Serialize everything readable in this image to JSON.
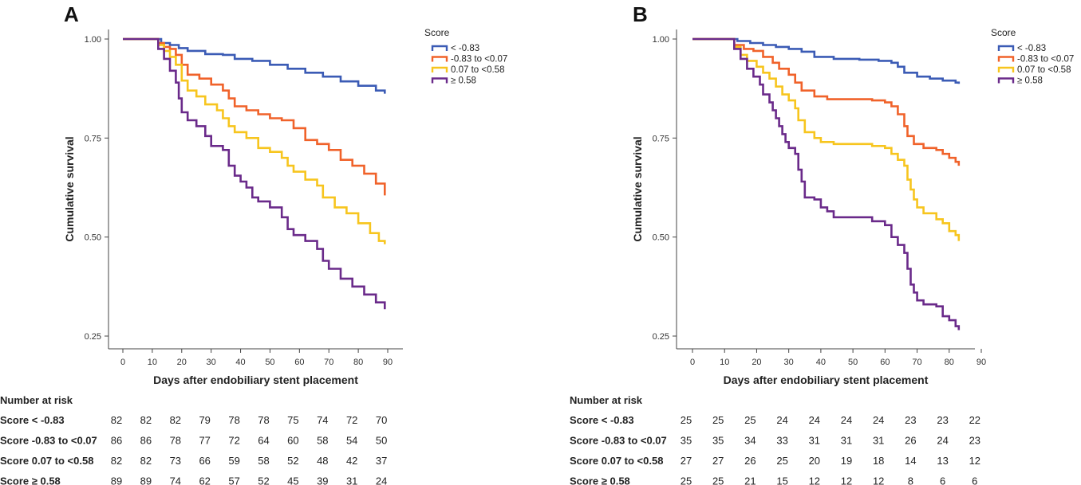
{
  "legend_title": "Score",
  "number_at_risk_label": "Number at risk",
  "series_colors": [
    "#3b5bb5",
    "#f0622a",
    "#f7c51e",
    "#6a2a8a"
  ],
  "chart_data": [
    {
      "panel": "A",
      "type": "line",
      "title": "",
      "xlabel": "Days after endobiliary stent placement",
      "ylabel": "Cumulative survival",
      "xlim": [
        -5,
        92
      ],
      "ylim": [
        0.22,
        1.02
      ],
      "xticks": [
        "0",
        "10",
        "20",
        "30",
        "40",
        "50",
        "60",
        "70",
        "80",
        "90"
      ],
      "yticks": [
        "0.25",
        "0.50",
        "0.75",
        "1.00"
      ],
      "legend_position": "top-right",
      "series": [
        {
          "name": " < -0.83",
          "points": [
            [
              0,
              1
            ],
            [
              10,
              1
            ],
            [
              13,
              0.99
            ],
            [
              16,
              0.985
            ],
            [
              19,
              0.977
            ],
            [
              22,
              0.97
            ],
            [
              28,
              0.962
            ],
            [
              34,
              0.96
            ],
            [
              38,
              0.95
            ],
            [
              44,
              0.945
            ],
            [
              50,
              0.935
            ],
            [
              56,
              0.925
            ],
            [
              62,
              0.915
            ],
            [
              68,
              0.905
            ],
            [
              74,
              0.893
            ],
            [
              80,
              0.882
            ],
            [
              86,
              0.87
            ],
            [
              89,
              0.862
            ]
          ]
        },
        {
          "name": "-0.83 to <0.07",
          "points": [
            [
              0,
              1
            ],
            [
              10,
              1
            ],
            [
              12,
              0.99
            ],
            [
              14,
              0.98
            ],
            [
              16,
              0.975
            ],
            [
              18,
              0.96
            ],
            [
              20,
              0.935
            ],
            [
              22,
              0.91
            ],
            [
              26,
              0.9
            ],
            [
              30,
              0.885
            ],
            [
              34,
              0.87
            ],
            [
              36,
              0.85
            ],
            [
              38,
              0.83
            ],
            [
              42,
              0.82
            ],
            [
              46,
              0.81
            ],
            [
              50,
              0.8
            ],
            [
              54,
              0.795
            ],
            [
              58,
              0.775
            ],
            [
              62,
              0.745
            ],
            [
              66,
              0.735
            ],
            [
              70,
              0.72
            ],
            [
              74,
              0.695
            ],
            [
              78,
              0.68
            ],
            [
              82,
              0.66
            ],
            [
              86,
              0.635
            ],
            [
              89,
              0.605
            ]
          ]
        },
        {
          "name": "0.07 to <0.58",
          "points": [
            [
              0,
              1
            ],
            [
              10,
              1
            ],
            [
              12,
              0.985
            ],
            [
              14,
              0.97
            ],
            [
              16,
              0.955
            ],
            [
              18,
              0.935
            ],
            [
              20,
              0.895
            ],
            [
              22,
              0.87
            ],
            [
              25,
              0.855
            ],
            [
              28,
              0.835
            ],
            [
              32,
              0.82
            ],
            [
              34,
              0.8
            ],
            [
              36,
              0.78
            ],
            [
              38,
              0.765
            ],
            [
              42,
              0.75
            ],
            [
              46,
              0.725
            ],
            [
              50,
              0.715
            ],
            [
              54,
              0.7
            ],
            [
              56,
              0.68
            ],
            [
              58,
              0.665
            ],
            [
              62,
              0.645
            ],
            [
              66,
              0.63
            ],
            [
              68,
              0.6
            ],
            [
              72,
              0.575
            ],
            [
              76,
              0.56
            ],
            [
              80,
              0.535
            ],
            [
              84,
              0.51
            ],
            [
              87,
              0.49
            ],
            [
              89,
              0.482
            ]
          ]
        },
        {
          "name": "≥ 0.58",
          "points": [
            [
              0,
              1
            ],
            [
              10,
              1
            ],
            [
              12,
              0.975
            ],
            [
              14,
              0.95
            ],
            [
              16,
              0.92
            ],
            [
              18,
              0.89
            ],
            [
              19,
              0.85
            ],
            [
              20,
              0.815
            ],
            [
              22,
              0.795
            ],
            [
              25,
              0.78
            ],
            [
              28,
              0.755
            ],
            [
              30,
              0.73
            ],
            [
              34,
              0.72
            ],
            [
              36,
              0.68
            ],
            [
              38,
              0.655
            ],
            [
              40,
              0.64
            ],
            [
              42,
              0.625
            ],
            [
              44,
              0.6
            ],
            [
              46,
              0.59
            ],
            [
              50,
              0.575
            ],
            [
              54,
              0.55
            ],
            [
              56,
              0.52
            ],
            [
              58,
              0.505
            ],
            [
              62,
              0.49
            ],
            [
              66,
              0.47
            ],
            [
              68,
              0.44
            ],
            [
              70,
              0.42
            ],
            [
              74,
              0.395
            ],
            [
              78,
              0.375
            ],
            [
              82,
              0.355
            ],
            [
              86,
              0.335
            ],
            [
              89,
              0.318
            ]
          ]
        }
      ],
      "risk_table": [
        {
          "label": "Score < -0.83",
          "values": [
            "82",
            "82",
            "82",
            "79",
            "78",
            "78",
            "75",
            "74",
            "72",
            "70"
          ]
        },
        {
          "label": "Score -0.83 to <0.07",
          "values": [
            "86",
            "86",
            "78",
            "77",
            "72",
            "64",
            "60",
            "58",
            "54",
            "50"
          ]
        },
        {
          "label": "Score 0.07 to <0.58",
          "values": [
            "82",
            "82",
            "73",
            "66",
            "59",
            "58",
            "52",
            "48",
            "42",
            "37"
          ]
        },
        {
          "label": "Score ≥ 0.58",
          "values": [
            "89",
            "89",
            "74",
            "62",
            "57",
            "52",
            "45",
            "39",
            "31",
            "24"
          ]
        }
      ]
    },
    {
      "panel": "B",
      "type": "line",
      "title": "",
      "xlabel": "Days after endobiliary stent placement",
      "ylabel": "Cumulative survival",
      "xlim": [
        -5,
        92
      ],
      "ylim": [
        0.22,
        1.02
      ],
      "xticks": [
        "0",
        "10",
        "20",
        "30",
        "40",
        "50",
        "60",
        "70",
        "80",
        "90"
      ],
      "yticks": [
        "0.25",
        "0.50",
        "0.75",
        "1.00"
      ],
      "legend_position": "top-right",
      "series": [
        {
          "name": " < -0.83",
          "points": [
            [
              0,
              1
            ],
            [
              12,
              1
            ],
            [
              14,
              0.995
            ],
            [
              18,
              0.99
            ],
            [
              22,
              0.985
            ],
            [
              26,
              0.98
            ],
            [
              30,
              0.975
            ],
            [
              34,
              0.968
            ],
            [
              38,
              0.955
            ],
            [
              44,
              0.95
            ],
            [
              52,
              0.948
            ],
            [
              58,
              0.945
            ],
            [
              62,
              0.94
            ],
            [
              64,
              0.93
            ],
            [
              66,
              0.915
            ],
            [
              70,
              0.905
            ],
            [
              74,
              0.9
            ],
            [
              78,
              0.895
            ],
            [
              82,
              0.89
            ],
            [
              83,
              0.887
            ]
          ]
        },
        {
          "name": "-0.83 to <0.07",
          "points": [
            [
              0,
              1
            ],
            [
              12,
              1
            ],
            [
              13,
              0.985
            ],
            [
              16,
              0.975
            ],
            [
              19,
              0.97
            ],
            [
              22,
              0.955
            ],
            [
              25,
              0.94
            ],
            [
              27,
              0.925
            ],
            [
              30,
              0.91
            ],
            [
              32,
              0.89
            ],
            [
              34,
              0.87
            ],
            [
              38,
              0.855
            ],
            [
              42,
              0.848
            ],
            [
              48,
              0.848
            ],
            [
              56,
              0.845
            ],
            [
              60,
              0.84
            ],
            [
              62,
              0.83
            ],
            [
              64,
              0.81
            ],
            [
              66,
              0.78
            ],
            [
              67,
              0.755
            ],
            [
              69,
              0.735
            ],
            [
              72,
              0.725
            ],
            [
              76,
              0.72
            ],
            [
              78,
              0.71
            ],
            [
              80,
              0.7
            ],
            [
              82,
              0.69
            ],
            [
              83,
              0.68
            ]
          ]
        },
        {
          "name": "0.07 to <0.58",
          "points": [
            [
              0,
              1
            ],
            [
              12,
              1
            ],
            [
              13,
              0.98
            ],
            [
              15,
              0.96
            ],
            [
              17,
              0.945
            ],
            [
              20,
              0.93
            ],
            [
              22,
              0.915
            ],
            [
              24,
              0.9
            ],
            [
              26,
              0.88
            ],
            [
              28,
              0.86
            ],
            [
              30,
              0.845
            ],
            [
              32,
              0.825
            ],
            [
              33,
              0.795
            ],
            [
              35,
              0.765
            ],
            [
              38,
              0.75
            ],
            [
              40,
              0.74
            ],
            [
              44,
              0.735
            ],
            [
              52,
              0.735
            ],
            [
              56,
              0.73
            ],
            [
              60,
              0.725
            ],
            [
              62,
              0.71
            ],
            [
              64,
              0.695
            ],
            [
              66,
              0.68
            ],
            [
              67,
              0.645
            ],
            [
              68,
              0.62
            ],
            [
              69,
              0.595
            ],
            [
              70,
              0.575
            ],
            [
              72,
              0.56
            ],
            [
              76,
              0.545
            ],
            [
              78,
              0.535
            ],
            [
              80,
              0.515
            ],
            [
              82,
              0.505
            ],
            [
              83,
              0.49
            ]
          ]
        },
        {
          "name": "≥ 0.58",
          "points": [
            [
              0,
              1
            ],
            [
              12,
              1
            ],
            [
              13,
              0.975
            ],
            [
              15,
              0.95
            ],
            [
              17,
              0.925
            ],
            [
              19,
              0.905
            ],
            [
              21,
              0.885
            ],
            [
              22,
              0.86
            ],
            [
              24,
              0.84
            ],
            [
              25,
              0.82
            ],
            [
              26,
              0.8
            ],
            [
              27,
              0.78
            ],
            [
              28,
              0.76
            ],
            [
              29,
              0.74
            ],
            [
              30,
              0.725
            ],
            [
              32,
              0.71
            ],
            [
              33,
              0.67
            ],
            [
              34,
              0.64
            ],
            [
              35,
              0.6
            ],
            [
              38,
              0.595
            ],
            [
              40,
              0.575
            ],
            [
              42,
              0.565
            ],
            [
              44,
              0.55
            ],
            [
              54,
              0.55
            ],
            [
              56,
              0.54
            ],
            [
              60,
              0.53
            ],
            [
              62,
              0.5
            ],
            [
              64,
              0.48
            ],
            [
              66,
              0.46
            ],
            [
              67,
              0.42
            ],
            [
              68,
              0.38
            ],
            [
              69,
              0.36
            ],
            [
              70,
              0.34
            ],
            [
              72,
              0.33
            ],
            [
              76,
              0.325
            ],
            [
              78,
              0.3
            ],
            [
              80,
              0.29
            ],
            [
              82,
              0.275
            ],
            [
              83,
              0.265
            ]
          ]
        }
      ],
      "risk_table": [
        {
          "label": "Score < -0.83",
          "values": [
            "25",
            "25",
            "25",
            "24",
            "24",
            "24",
            "24",
            "23",
            "23",
            "22"
          ]
        },
        {
          "label": "Score -0.83 to <0.07",
          "values": [
            "35",
            "35",
            "34",
            "33",
            "31",
            "31",
            "31",
            "26",
            "24",
            "23"
          ]
        },
        {
          "label": "Score 0.07 to <0.58",
          "values": [
            "27",
            "27",
            "26",
            "25",
            "20",
            "19",
            "18",
            "14",
            "13",
            "12"
          ]
        },
        {
          "label": "Score ≥ 0.58",
          "values": [
            "25",
            "25",
            "21",
            "15",
            "12",
            "12",
            "12",
            "8",
            "6",
            "6"
          ]
        }
      ]
    }
  ]
}
